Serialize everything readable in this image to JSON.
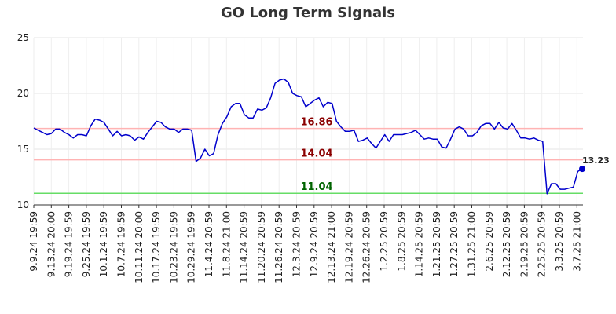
{
  "chart_data": {
    "type": "line",
    "title": "GO Long Term Signals",
    "ylim": [
      10,
      25
    ],
    "yticks": [
      "10",
      "15",
      "20",
      "25"
    ],
    "xlabels": [
      "9.9.24 19:59",
      "9.13.24 20:00",
      "9.19.24 19:59",
      "9.25.24 19:59",
      "10.1.24 19:59",
      "10.7.24 19:59",
      "10.11.24 20:00",
      "10.17.24 19:59",
      "10.23.24 19:59",
      "10.29.24 19:59",
      "11.4.24 20:59",
      "11.8.24 21:00",
      "11.14.24 20:59",
      "11.20.24 20:59",
      "11.26.24 20:59",
      "12.3.24 20:59",
      "12.9.24 20:59",
      "12.13.24 21:00",
      "12.19.24 20:59",
      "12.26.24 20:59",
      "1.2.25 20:59",
      "1.8.25 20:59",
      "1.14.25 20:59",
      "1.21.25 20:59",
      "1.27.25 20:59",
      "1.31.25 21:00",
      "2.6.25 20:59",
      "2.12.25 20:59",
      "2.19.25 20:59",
      "2.25.25 20:59",
      "3.3.25 20:59",
      "3.7.25 21:00"
    ],
    "series": [
      {
        "values": [
          16.9,
          16.7,
          16.5,
          16.3,
          16.4,
          16.8,
          16.8,
          16.5,
          16.3,
          16.0,
          16.3,
          16.3,
          16.2,
          17.1,
          17.7,
          17.6,
          17.4,
          16.8,
          16.2,
          16.6,
          16.2,
          16.3,
          16.2,
          15.8,
          16.1,
          15.9,
          16.5,
          17.0,
          17.5,
          17.4,
          17.0,
          16.8,
          16.8,
          16.5,
          16.8,
          16.8,
          16.7,
          13.9,
          14.2,
          15.0,
          14.4,
          14.6,
          16.3,
          17.3,
          17.9,
          18.8,
          19.1,
          19.1,
          18.1,
          17.8,
          17.8,
          18.6,
          18.5,
          18.7,
          19.6,
          20.9,
          21.2,
          21.3,
          21.0,
          20.0,
          19.8,
          19.7,
          18.8,
          19.1,
          19.4,
          19.6,
          18.8,
          19.2,
          19.1,
          17.5,
          17.0,
          16.6,
          16.6,
          16.7,
          15.7,
          15.8,
          16.0,
          15.5,
          15.1,
          15.7,
          16.3,
          15.7,
          16.3,
          16.3,
          16.3,
          16.4,
          16.5,
          16.7,
          16.3,
          15.9,
          16.0,
          15.9,
          15.9,
          15.2,
          15.1,
          15.9,
          16.8,
          17.0,
          16.8,
          16.2,
          16.2,
          16.5,
          17.1,
          17.3,
          17.3,
          16.8,
          17.4,
          16.9,
          16.8,
          17.3,
          16.7,
          16.0,
          16.0,
          15.9,
          16.0,
          15.8,
          15.7,
          11.0,
          11.9,
          11.9,
          11.4,
          11.4,
          11.5,
          11.6,
          13.0,
          13.23
        ],
        "color": "#0000cc"
      }
    ],
    "reference_lines": [
      {
        "value": 16.86,
        "label": "16.86",
        "line_color": "#ffb3b3",
        "label_color": "#8b0000"
      },
      {
        "value": 14.04,
        "label": "14.04",
        "line_color": "#ffb3b3",
        "label_color": "#8b0000"
      },
      {
        "value": 11.04,
        "label": "11.04",
        "line_color": "#66dd66",
        "label_color": "#006400"
      }
    ],
    "last_value_label": "13.23",
    "grid": true
  }
}
